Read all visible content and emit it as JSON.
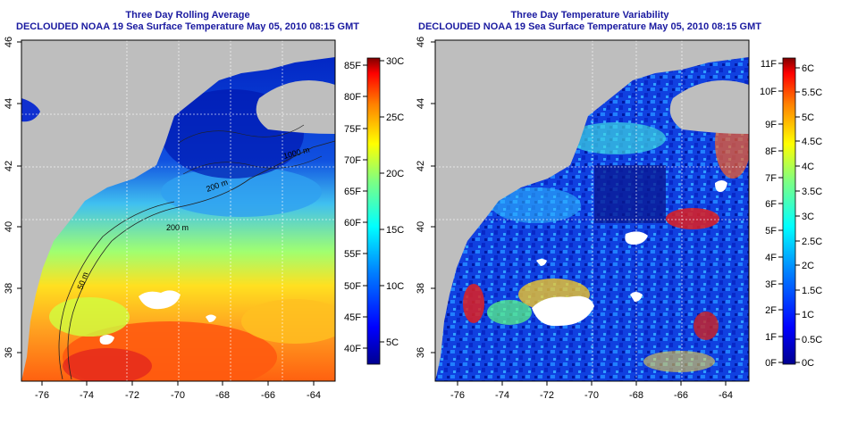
{
  "left_panel": {
    "title": "Three Day Rolling Average",
    "subtitle": "DECLOUDED NOAA 19 Sea Surface Temperature May 05, 2010 08:15 GMT",
    "lat_ticks": [
      "36",
      "38",
      "40",
      "42",
      "44",
      "46"
    ],
    "lon_ticks": [
      "-76",
      "-74",
      "-72",
      "-70",
      "-68",
      "-66",
      "-64"
    ],
    "colorbar_f": [
      "40F",
      "45F",
      "50F",
      "55F",
      "60F",
      "65F",
      "70F",
      "75F",
      "80F",
      "85F"
    ],
    "colorbar_c": [
      "5C",
      "10C",
      "15C",
      "20C",
      "25C",
      "30C"
    ],
    "contour_labels": [
      "1000 m",
      "200 m",
      "200 m",
      "50 m"
    ]
  },
  "right_panel": {
    "title": "Three Day Temperature Variability",
    "subtitle": "DECLOUDED NOAA 19 Sea Surface Temperature May 05, 2010 08:15 GMT",
    "lat_ticks": [
      "36",
      "38",
      "40",
      "42",
      "44",
      "46"
    ],
    "lon_ticks": [
      "-76",
      "-74",
      "-72",
      "-70",
      "-68",
      "-66",
      "-64"
    ],
    "colorbar_f": [
      "0F",
      "1F",
      "2F",
      "3F",
      "4F",
      "5F",
      "6F",
      "7F",
      "8F",
      "9F",
      "10F",
      "11F"
    ],
    "colorbar_c": [
      "0C",
      "0.5C",
      "1C",
      "1.5C",
      "2C",
      "2.5C",
      "3C",
      "3.5C",
      "4C",
      "4.5C",
      "5C",
      "5.5C",
      "6C"
    ]
  },
  "colors": {
    "land": "#bebebe",
    "title": "#1a1aa0",
    "cloud": "#ffffff"
  }
}
